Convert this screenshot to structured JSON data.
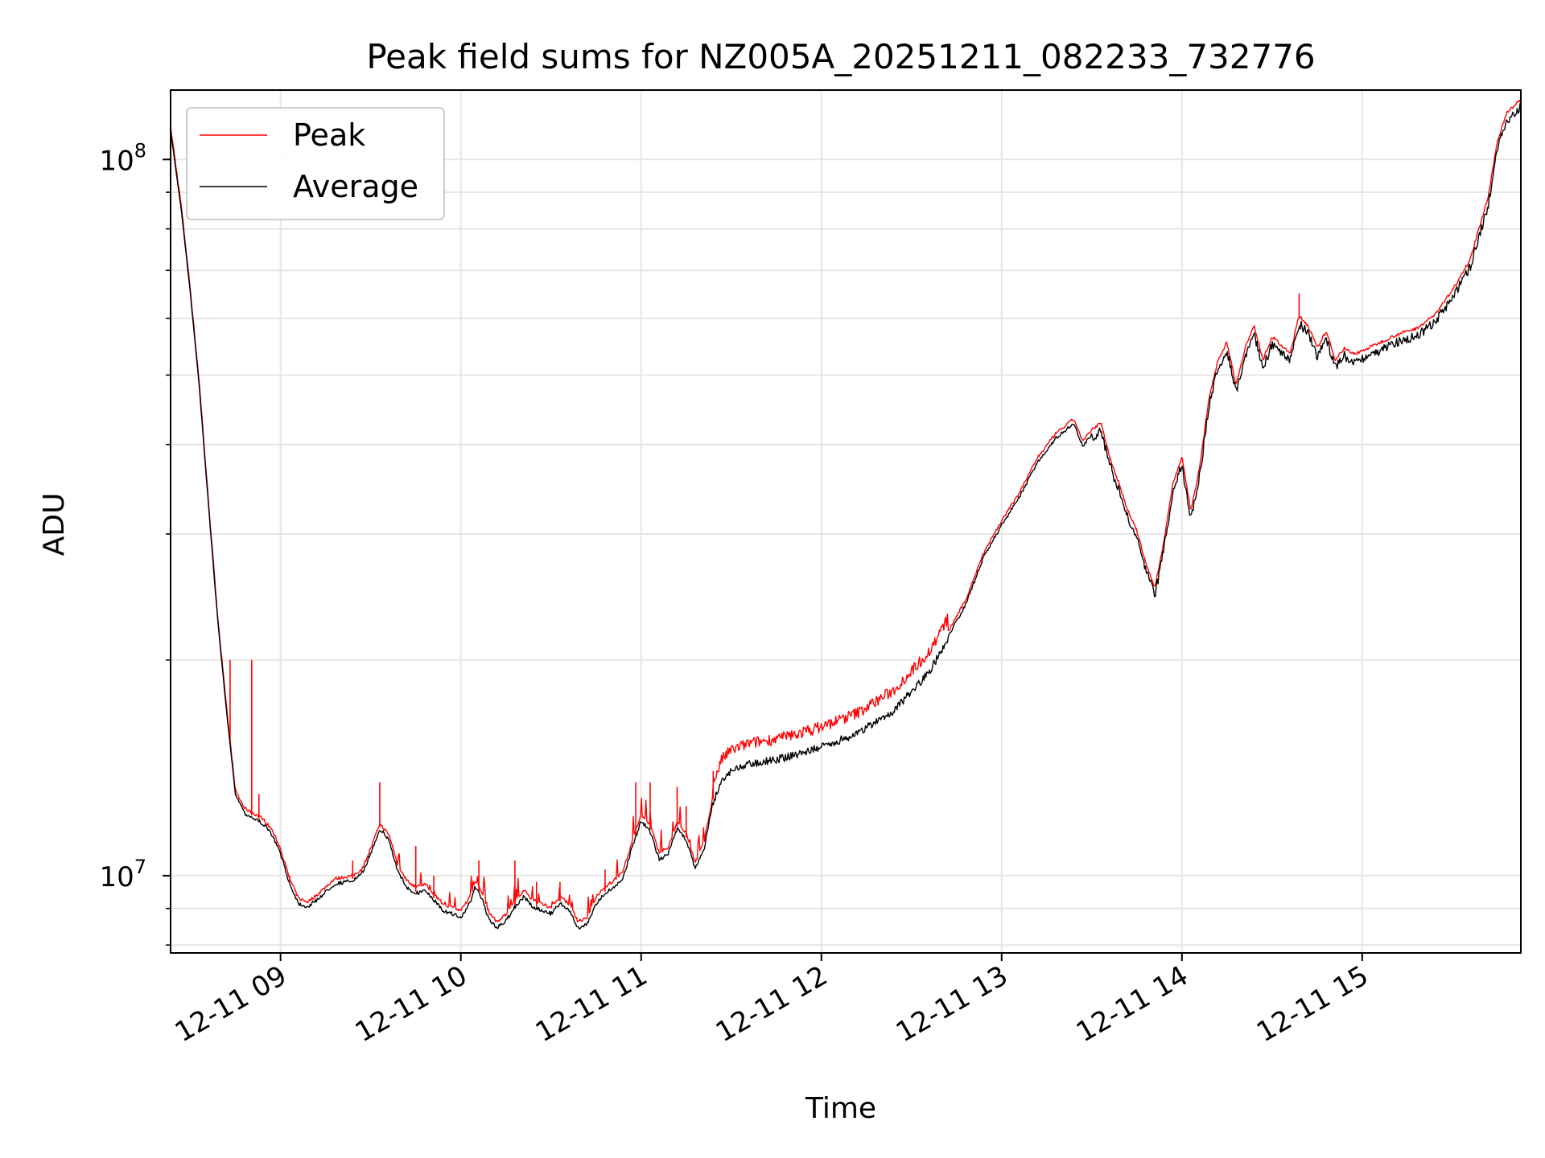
{
  "chart_data": {
    "type": "line",
    "title": "Peak field sums for NZ005A_20251211_082233_732776",
    "xlabel": "Time",
    "ylabel": "ADU",
    "yscale": "log",
    "ylim": [
      7800000,
      125000000
    ],
    "xlim_hours": [
      8.39,
      15.88
    ],
    "x_unit": "hours of day 2025-12-11",
    "x_ticks": [
      {
        "value": 9,
        "label": "12-11 09"
      },
      {
        "value": 10,
        "label": "12-11 10"
      },
      {
        "value": 11,
        "label": "12-11 11"
      },
      {
        "value": 12,
        "label": "12-11 12"
      },
      {
        "value": 13,
        "label": "12-11 13"
      },
      {
        "value": 14,
        "label": "12-11 14"
      },
      {
        "value": 15,
        "label": "12-11 15"
      }
    ],
    "y_ticks": [
      {
        "value": 10000000,
        "base": "10",
        "exp": "7"
      },
      {
        "value": 100000000,
        "base": "10",
        "exp": "8"
      }
    ],
    "y_minor_ticks": [
      8000000,
      9000000,
      20000000,
      30000000,
      40000000,
      50000000,
      60000000,
      70000000,
      80000000,
      90000000
    ],
    "grid": true,
    "legend_position": "top-left",
    "series": [
      {
        "name": "Peak",
        "label": "Peak",
        "color": "#ff0000"
      },
      {
        "name": "Average",
        "label": "Average",
        "color": "#000000"
      }
    ],
    "average_curve": [
      [
        8.39,
        110000000
      ],
      [
        8.45,
        85000000
      ],
      [
        8.5,
        65000000
      ],
      [
        8.55,
        48000000
      ],
      [
        8.6,
        33000000
      ],
      [
        8.65,
        23000000
      ],
      [
        8.7,
        17000000
      ],
      [
        8.75,
        13000000
      ],
      [
        8.8,
        12300000
      ],
      [
        8.85,
        12100000
      ],
      [
        8.9,
        11900000
      ],
      [
        8.95,
        11500000
      ],
      [
        9.0,
        10800000
      ],
      [
        9.05,
        9800000
      ],
      [
        9.1,
        9200000
      ],
      [
        9.15,
        9100000
      ],
      [
        9.2,
        9300000
      ],
      [
        9.3,
        9800000
      ],
      [
        9.4,
        9900000
      ],
      [
        9.45,
        10100000
      ],
      [
        9.5,
        10800000
      ],
      [
        9.55,
        11700000
      ],
      [
        9.6,
        11300000
      ],
      [
        9.65,
        10200000
      ],
      [
        9.7,
        9700000
      ],
      [
        9.75,
        9500000
      ],
      [
        9.8,
        9600000
      ],
      [
        9.85,
        9300000
      ],
      [
        9.9,
        9000000
      ],
      [
        9.95,
        8900000
      ],
      [
        10.0,
        8800000
      ],
      [
        10.05,
        9200000
      ],
      [
        10.08,
        9700000
      ],
      [
        10.12,
        9300000
      ],
      [
        10.15,
        8800000
      ],
      [
        10.2,
        8500000
      ],
      [
        10.25,
        8700000
      ],
      [
        10.3,
        9100000
      ],
      [
        10.35,
        9400000
      ],
      [
        10.4,
        9100000
      ],
      [
        10.45,
        9000000
      ],
      [
        10.5,
        8900000
      ],
      [
        10.55,
        9200000
      ],
      [
        10.6,
        9000000
      ],
      [
        10.65,
        8500000
      ],
      [
        10.7,
        8600000
      ],
      [
        10.75,
        9200000
      ],
      [
        10.8,
        9500000
      ],
      [
        10.85,
        9700000
      ],
      [
        10.9,
        10000000
      ],
      [
        10.95,
        11000000
      ],
      [
        11.0,
        12000000
      ],
      [
        11.05,
        11600000
      ],
      [
        11.1,
        10600000
      ],
      [
        11.15,
        10800000
      ],
      [
        11.2,
        11700000
      ],
      [
        11.25,
        11300000
      ],
      [
        11.3,
        10300000
      ],
      [
        11.35,
        11000000
      ],
      [
        11.4,
        12800000
      ],
      [
        11.45,
        13800000
      ],
      [
        11.5,
        14200000
      ],
      [
        11.6,
        14500000
      ],
      [
        11.8,
        14800000
      ],
      [
        12.0,
        15300000
      ],
      [
        12.2,
        16000000
      ],
      [
        12.4,
        17200000
      ],
      [
        12.6,
        19500000
      ],
      [
        12.8,
        24000000
      ],
      [
        12.9,
        28000000
      ],
      [
        13.0,
        31000000
      ],
      [
        13.1,
        34000000
      ],
      [
        13.2,
        38000000
      ],
      [
        13.3,
        41000000
      ],
      [
        13.4,
        43000000
      ],
      [
        13.45,
        40000000
      ],
      [
        13.5,
        41500000
      ],
      [
        13.55,
        42500000
      ],
      [
        13.6,
        38000000
      ],
      [
        13.65,
        35000000
      ],
      [
        13.7,
        32000000
      ],
      [
        13.75,
        30000000
      ],
      [
        13.8,
        27000000
      ],
      [
        13.85,
        25000000
      ],
      [
        13.9,
        29000000
      ],
      [
        13.95,
        35000000
      ],
      [
        14.0,
        38000000
      ],
      [
        14.05,
        32000000
      ],
      [
        14.1,
        37000000
      ],
      [
        14.15,
        46000000
      ],
      [
        14.2,
        52000000
      ],
      [
        14.25,
        55000000
      ],
      [
        14.3,
        48000000
      ],
      [
        14.35,
        54000000
      ],
      [
        14.4,
        58000000
      ],
      [
        14.45,
        52000000
      ],
      [
        14.5,
        56000000
      ],
      [
        14.6,
        53000000
      ],
      [
        14.65,
        60000000
      ],
      [
        14.7,
        58000000
      ],
      [
        14.75,
        54000000
      ],
      [
        14.8,
        57000000
      ],
      [
        14.85,
        52000000
      ],
      [
        14.9,
        54000000
      ],
      [
        14.95,
        53000000
      ],
      [
        15.0,
        53500000
      ],
      [
        15.1,
        55000000
      ],
      [
        15.2,
        56500000
      ],
      [
        15.3,
        57500000
      ],
      [
        15.4,
        60000000
      ],
      [
        15.5,
        65000000
      ],
      [
        15.6,
        72000000
      ],
      [
        15.7,
        88000000
      ],
      [
        15.75,
        105000000
      ],
      [
        15.8,
        115000000
      ],
      [
        15.88,
        120000000
      ]
    ],
    "peak_spikes": [
      [
        8.72,
        20000000
      ],
      [
        8.84,
        20000000
      ],
      [
        8.88,
        13000000
      ],
      [
        9.05,
        10000000
      ],
      [
        9.3,
        9800000
      ],
      [
        9.4,
        10500000
      ],
      [
        9.55,
        13500000
      ],
      [
        9.75,
        11000000
      ],
      [
        9.85,
        10000000
      ],
      [
        10.1,
        10500000
      ],
      [
        10.3,
        10500000
      ],
      [
        10.42,
        9800000
      ],
      [
        10.55,
        9800000
      ],
      [
        10.8,
        10200000
      ],
      [
        10.97,
        13500000
      ],
      [
        11.05,
        13500000
      ],
      [
        11.2,
        13300000
      ],
      [
        11.25,
        12500000
      ],
      [
        11.4,
        14000000
      ],
      [
        14.65,
        65000000
      ]
    ]
  }
}
